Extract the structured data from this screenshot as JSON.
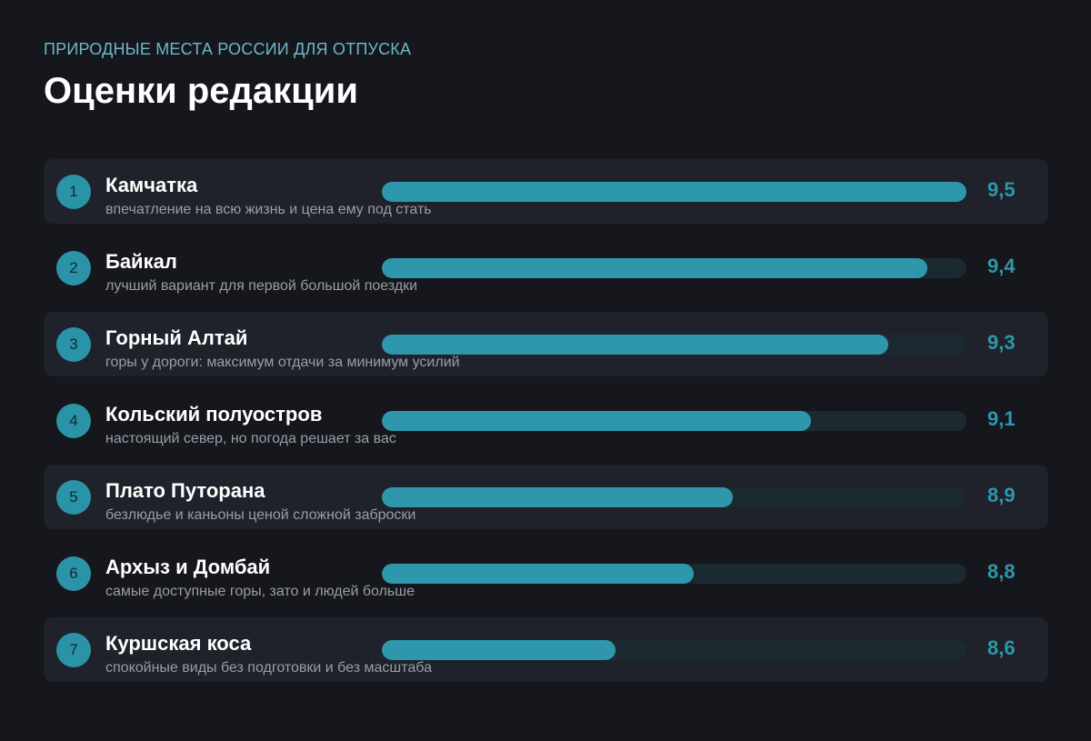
{
  "header": {
    "kicker": "ПРИРОДНЫЕ МЕСТА РОССИИ ДЛЯ ОТПУСКА",
    "title": "Оценки редакции"
  },
  "colors": {
    "background": "#15171d",
    "row_shade": "#1f222b",
    "accent": "#2e97ab",
    "track": "#1b2a30",
    "kicker": "#6fb7c7"
  },
  "chart_data": {
    "type": "bar",
    "orientation": "horizontal",
    "title": "Оценки редакции",
    "subtitle": "ПРИРОДНЫЕ МЕСТА РОССИИ ДЛЯ ОТПУСКА",
    "categories": [
      "Камчатка",
      "Байкал",
      "Горный Алтай",
      "Кольский полуостров",
      "Плато Путорана",
      "Архыз и Домбай",
      "Куршская коса"
    ],
    "values": [
      9.5,
      9.4,
      9.3,
      9.1,
      8.9,
      8.8,
      8.6
    ],
    "xlim": [
      8.0,
      9.5
    ],
    "grid": false,
    "items": [
      {
        "rank": "1",
        "name": "Камчатка",
        "desc": "впечатление на всю жизнь и цена ему под стать",
        "score": 9.5,
        "score_label": "9,5"
      },
      {
        "rank": "2",
        "name": "Байкал",
        "desc": "лучший вариант для первой большой поездки",
        "score": 9.4,
        "score_label": "9,4"
      },
      {
        "rank": "3",
        "name": "Горный Алтай",
        "desc": "горы у дороги: максимум отдачи за минимум усилий",
        "score": 9.3,
        "score_label": "9,3"
      },
      {
        "rank": "4",
        "name": "Кольский полуостров",
        "desc": "настоящий север, но погода решает за вас",
        "score": 9.1,
        "score_label": "9,1"
      },
      {
        "rank": "5",
        "name": "Плато Путорана",
        "desc": "безлюдье и каньоны ценой сложной заброски",
        "score": 8.9,
        "score_label": "8,9"
      },
      {
        "rank": "6",
        "name": "Архыз и Домбай",
        "desc": "самые доступные горы, зато и людей больше",
        "score": 8.8,
        "score_label": "8,8"
      },
      {
        "rank": "7",
        "name": "Куршская коса",
        "desc": "спокойные виды без подготовки и без масштаба",
        "score": 8.6,
        "score_label": "8,6"
      }
    ]
  }
}
